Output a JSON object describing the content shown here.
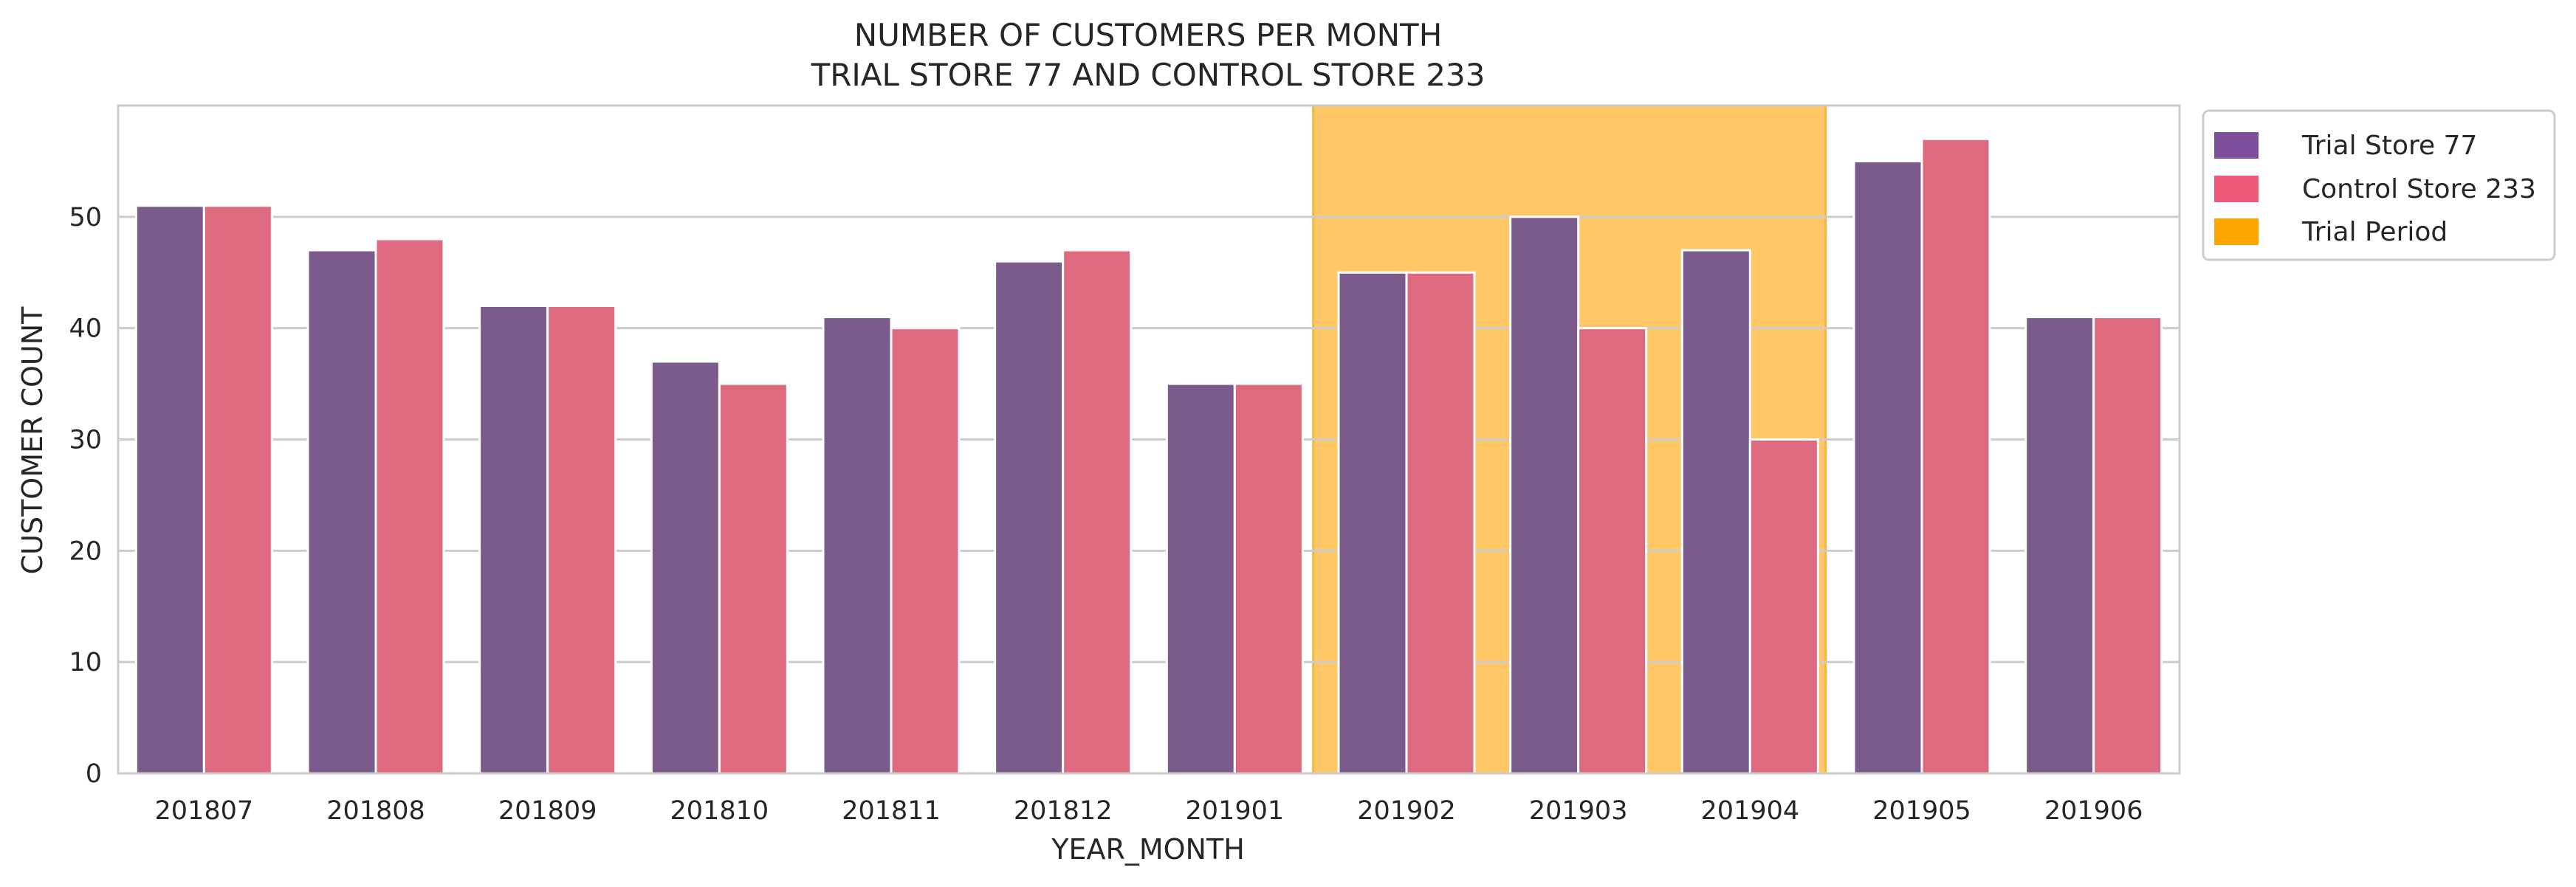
{
  "chart_data": {
    "type": "bar",
    "title": "NUMBER OF CUSTOMERS PER MONTH",
    "subtitle": "TRIAL STORE 77 AND CONTROL STORE 233",
    "xlabel": "YEAR_MONTH",
    "ylabel": "CUSTOMER COUNT",
    "ylim": [
      0,
      60
    ],
    "yticks": [
      0,
      10,
      20,
      30,
      40,
      50
    ],
    "grid": "horizontal",
    "legend_position": "outside-top-right",
    "categories": [
      "201807",
      "201808",
      "201809",
      "201810",
      "201811",
      "201812",
      "201901",
      "201902",
      "201903",
      "201904",
      "201905",
      "201906"
    ],
    "series": [
      {
        "name": "Trial Store 77",
        "color": "#7a5b8c",
        "legend_color": "#7e4f9a",
        "values": [
          51,
          47,
          42,
          37,
          41,
          46,
          35,
          45,
          50,
          47,
          55,
          41
        ]
      },
      {
        "name": "Control Store 233",
        "color": "#dd6a7f",
        "legend_color": "#ef5a7a",
        "values": [
          51,
          48,
          42,
          35,
          40,
          47,
          35,
          45,
          40,
          30,
          57,
          41
        ]
      }
    ],
    "trial_period": {
      "name": "Trial Period",
      "start": "201902",
      "end": "201904",
      "color": "#ffc766",
      "legend_color": "#ffa500"
    }
  }
}
